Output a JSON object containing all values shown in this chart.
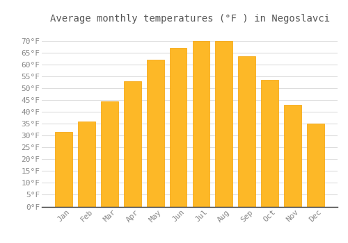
{
  "title": "Average monthly temperatures (°F ) in Negoslavci",
  "months": [
    "Jan",
    "Feb",
    "Mar",
    "Apr",
    "May",
    "Jun",
    "Jul",
    "Aug",
    "Sep",
    "Oct",
    "Nov",
    "Dec"
  ],
  "values": [
    31.5,
    36,
    44.5,
    53,
    62,
    67,
    70,
    70,
    63.5,
    53.5,
    43,
    35
  ],
  "bar_color_top": "#FDB827",
  "bar_color_bottom": "#F5A000",
  "background_color": "#FFFFFF",
  "grid_color": "#DDDDDD",
  "ylim": [
    0,
    75
  ],
  "yticks": [
    0,
    5,
    10,
    15,
    20,
    25,
    30,
    35,
    40,
    45,
    50,
    55,
    60,
    65,
    70
  ],
  "ytick_labels": [
    "0°F",
    "5°F",
    "10°F",
    "15°F",
    "20°F",
    "25°F",
    "30°F",
    "35°F",
    "40°F",
    "45°F",
    "50°F",
    "55°F",
    "60°F",
    "65°F",
    "70°F"
  ],
  "title_fontsize": 10,
  "tick_fontsize": 8,
  "tick_color": "#888888",
  "title_color": "#555555",
  "axis_color": "#333333"
}
